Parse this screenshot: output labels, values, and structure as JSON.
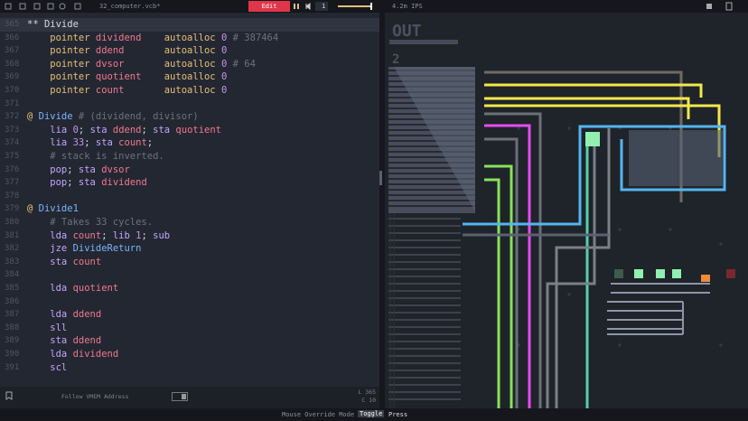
{
  "toolbar": {
    "filename": "32_computer.vcb*",
    "mode_button": "Edit",
    "speed": "1",
    "ips": "4.2m IPS"
  },
  "editor": {
    "lines": [
      {
        "number": "365",
        "selected": true,
        "tokens": [
          {
            "text": "** Divide",
            "kind": "plain"
          }
        ]
      },
      {
        "number": "366",
        "tokens": [
          {
            "text": "    pointer",
            "kind": "kw"
          },
          {
            "text": " dividend",
            "kind": "id"
          },
          {
            "text": "    autoalloc",
            "kind": "kw"
          },
          {
            "text": " 0",
            "kind": "num"
          },
          {
            "text": " # 387464",
            "kind": "cmt"
          }
        ]
      },
      {
        "number": "367",
        "tokens": [
          {
            "text": "    pointer",
            "kind": "kw"
          },
          {
            "text": " ddend",
            "kind": "id"
          },
          {
            "text": "       autoalloc",
            "kind": "kw"
          },
          {
            "text": " 0",
            "kind": "num"
          }
        ]
      },
      {
        "number": "368",
        "tokens": [
          {
            "text": "    pointer",
            "kind": "kw"
          },
          {
            "text": " dvsor",
            "kind": "id"
          },
          {
            "text": "       autoalloc",
            "kind": "kw"
          },
          {
            "text": " 0",
            "kind": "num"
          },
          {
            "text": " # 64",
            "kind": "cmt"
          }
        ]
      },
      {
        "number": "369",
        "tokens": [
          {
            "text": "    pointer",
            "kind": "kw"
          },
          {
            "text": " quotient",
            "kind": "id"
          },
          {
            "text": "    autoalloc",
            "kind": "kw"
          },
          {
            "text": " 0",
            "kind": "num"
          }
        ]
      },
      {
        "number": "370",
        "tokens": [
          {
            "text": "    pointer",
            "kind": "kw"
          },
          {
            "text": " count",
            "kind": "id"
          },
          {
            "text": "       autoalloc",
            "kind": "kw"
          },
          {
            "text": " 0",
            "kind": "num"
          }
        ]
      },
      {
        "number": "371",
        "tokens": []
      },
      {
        "number": "372",
        "tokens": [
          {
            "text": "@",
            "kind": "kw"
          },
          {
            "text": " Divide",
            "kind": "lbl"
          },
          {
            "text": " # (dividend, divisor)",
            "kind": "cmt"
          }
        ]
      },
      {
        "number": "373",
        "tokens": [
          {
            "text": "    lia",
            "kind": "op"
          },
          {
            "text": " 0",
            "kind": "num"
          },
          {
            "text": ";",
            "kind": "plain"
          },
          {
            "text": " sta",
            "kind": "op"
          },
          {
            "text": " ddend",
            "kind": "id"
          },
          {
            "text": ";",
            "kind": "plain"
          },
          {
            "text": " sta",
            "kind": "op"
          },
          {
            "text": " quotient",
            "kind": "id"
          }
        ]
      },
      {
        "number": "374",
        "tokens": [
          {
            "text": "    lia",
            "kind": "op"
          },
          {
            "text": " 33",
            "kind": "num"
          },
          {
            "text": ";",
            "kind": "plain"
          },
          {
            "text": " sta",
            "kind": "op"
          },
          {
            "text": " count",
            "kind": "id"
          },
          {
            "text": ";",
            "kind": "plain"
          }
        ]
      },
      {
        "number": "375",
        "tokens": [
          {
            "text": "    # stack is inverted.",
            "kind": "cmt"
          }
        ]
      },
      {
        "number": "376",
        "tokens": [
          {
            "text": "    pop",
            "kind": "op"
          },
          {
            "text": ";",
            "kind": "plain"
          },
          {
            "text": " sta",
            "kind": "op"
          },
          {
            "text": " dvsor",
            "kind": "id"
          }
        ]
      },
      {
        "number": "377",
        "tokens": [
          {
            "text": "    pop",
            "kind": "op"
          },
          {
            "text": ";",
            "kind": "plain"
          },
          {
            "text": " sta",
            "kind": "op"
          },
          {
            "text": " dividend",
            "kind": "id"
          }
        ]
      },
      {
        "number": "378",
        "tokens": []
      },
      {
        "number": "379",
        "tokens": [
          {
            "text": "@",
            "kind": "kw"
          },
          {
            "text": " Divide1",
            "kind": "lbl"
          }
        ]
      },
      {
        "number": "380",
        "tokens": [
          {
            "text": "    # Takes 33 cycles.",
            "kind": "cmt"
          }
        ]
      },
      {
        "number": "381",
        "tokens": [
          {
            "text": "    lda",
            "kind": "op"
          },
          {
            "text": " count",
            "kind": "id"
          },
          {
            "text": ";",
            "kind": "plain"
          },
          {
            "text": " lib",
            "kind": "op"
          },
          {
            "text": " 1",
            "kind": "num"
          },
          {
            "text": ";",
            "kind": "plain"
          },
          {
            "text": " sub",
            "kind": "op"
          }
        ]
      },
      {
        "number": "382",
        "tokens": [
          {
            "text": "    jze",
            "kind": "op"
          },
          {
            "text": " DivideReturn",
            "kind": "lbl"
          }
        ]
      },
      {
        "number": "383",
        "tokens": [
          {
            "text": "    sta",
            "kind": "op"
          },
          {
            "text": " count",
            "kind": "id"
          }
        ]
      },
      {
        "number": "384",
        "tokens": []
      },
      {
        "number": "385",
        "tokens": [
          {
            "text": "    lda",
            "kind": "op"
          },
          {
            "text": " quotient",
            "kind": "id"
          }
        ]
      },
      {
        "number": "386",
        "tokens": []
      },
      {
        "number": "387",
        "tokens": [
          {
            "text": "    lda",
            "kind": "op"
          },
          {
            "text": " ddend",
            "kind": "id"
          }
        ]
      },
      {
        "number": "388",
        "tokens": [
          {
            "text": "    sll",
            "kind": "op"
          }
        ]
      },
      {
        "number": "389",
        "tokens": [
          {
            "text": "    sta",
            "kind": "op"
          },
          {
            "text": " ddend",
            "kind": "id"
          }
        ]
      },
      {
        "number": "390",
        "tokens": [
          {
            "text": "    lda",
            "kind": "op"
          },
          {
            "text": " dividend",
            "kind": "id"
          }
        ]
      },
      {
        "number": "391",
        "tokens": [
          {
            "text": "    scl",
            "kind": "op"
          }
        ]
      }
    ]
  },
  "status": {
    "follow": "Follow VMEM Address",
    "line": "L 365",
    "column": "C 10"
  },
  "circuit": {
    "label": "OUT",
    "sublabel": "2"
  },
  "footer": {
    "mode": "Mouse Override Mode",
    "toggle": "Toggle",
    "press": "Press"
  }
}
